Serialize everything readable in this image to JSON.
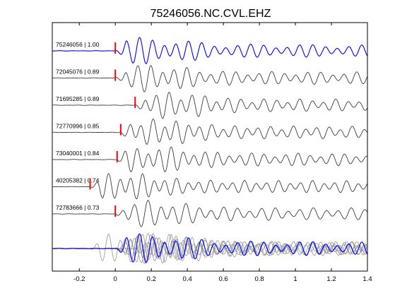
{
  "chart_data": {
    "type": "line",
    "title": "75246056.NC.CVL.EHZ",
    "xlabel": "",
    "ylabel": "",
    "xlim": [
      -0.35,
      1.4
    ],
    "xticks": [
      -0.2,
      0,
      0.2,
      0.4,
      0.6,
      0.8,
      1,
      1.2,
      1.4
    ],
    "xtick_labels": [
      "-0.2",
      "0",
      "0.2",
      "0.4",
      "0.6",
      "0.8",
      "1",
      "1.2",
      "1.4"
    ],
    "grid": false,
    "series": [
      {
        "label": "75246056 | 1.00",
        "pick": 0.0,
        "color": "#0000ff"
      },
      {
        "label": "72045076 | 0.89",
        "pick": 0.0,
        "color": "#3c3c3c"
      },
      {
        "label": "71695285 | 0.89",
        "pick": 0.11,
        "color": "#3c3c3c"
      },
      {
        "label": "72770996 | 0.85",
        "pick": 0.03,
        "color": "#3c3c3c"
      },
      {
        "label": "73040001 | 0.84",
        "pick": 0.01,
        "color": "#3c3c3c"
      },
      {
        "label": "40205382 | 0.74",
        "pick": -0.14,
        "color": "#3c3c3c"
      },
      {
        "label": "72783666 | 0.73",
        "pick": 0.0,
        "color": "#3c3c3c"
      }
    ],
    "overlay": {
      "color": "#0000ff",
      "others_color": "#808080"
    },
    "pick_color": "#ff0000"
  }
}
